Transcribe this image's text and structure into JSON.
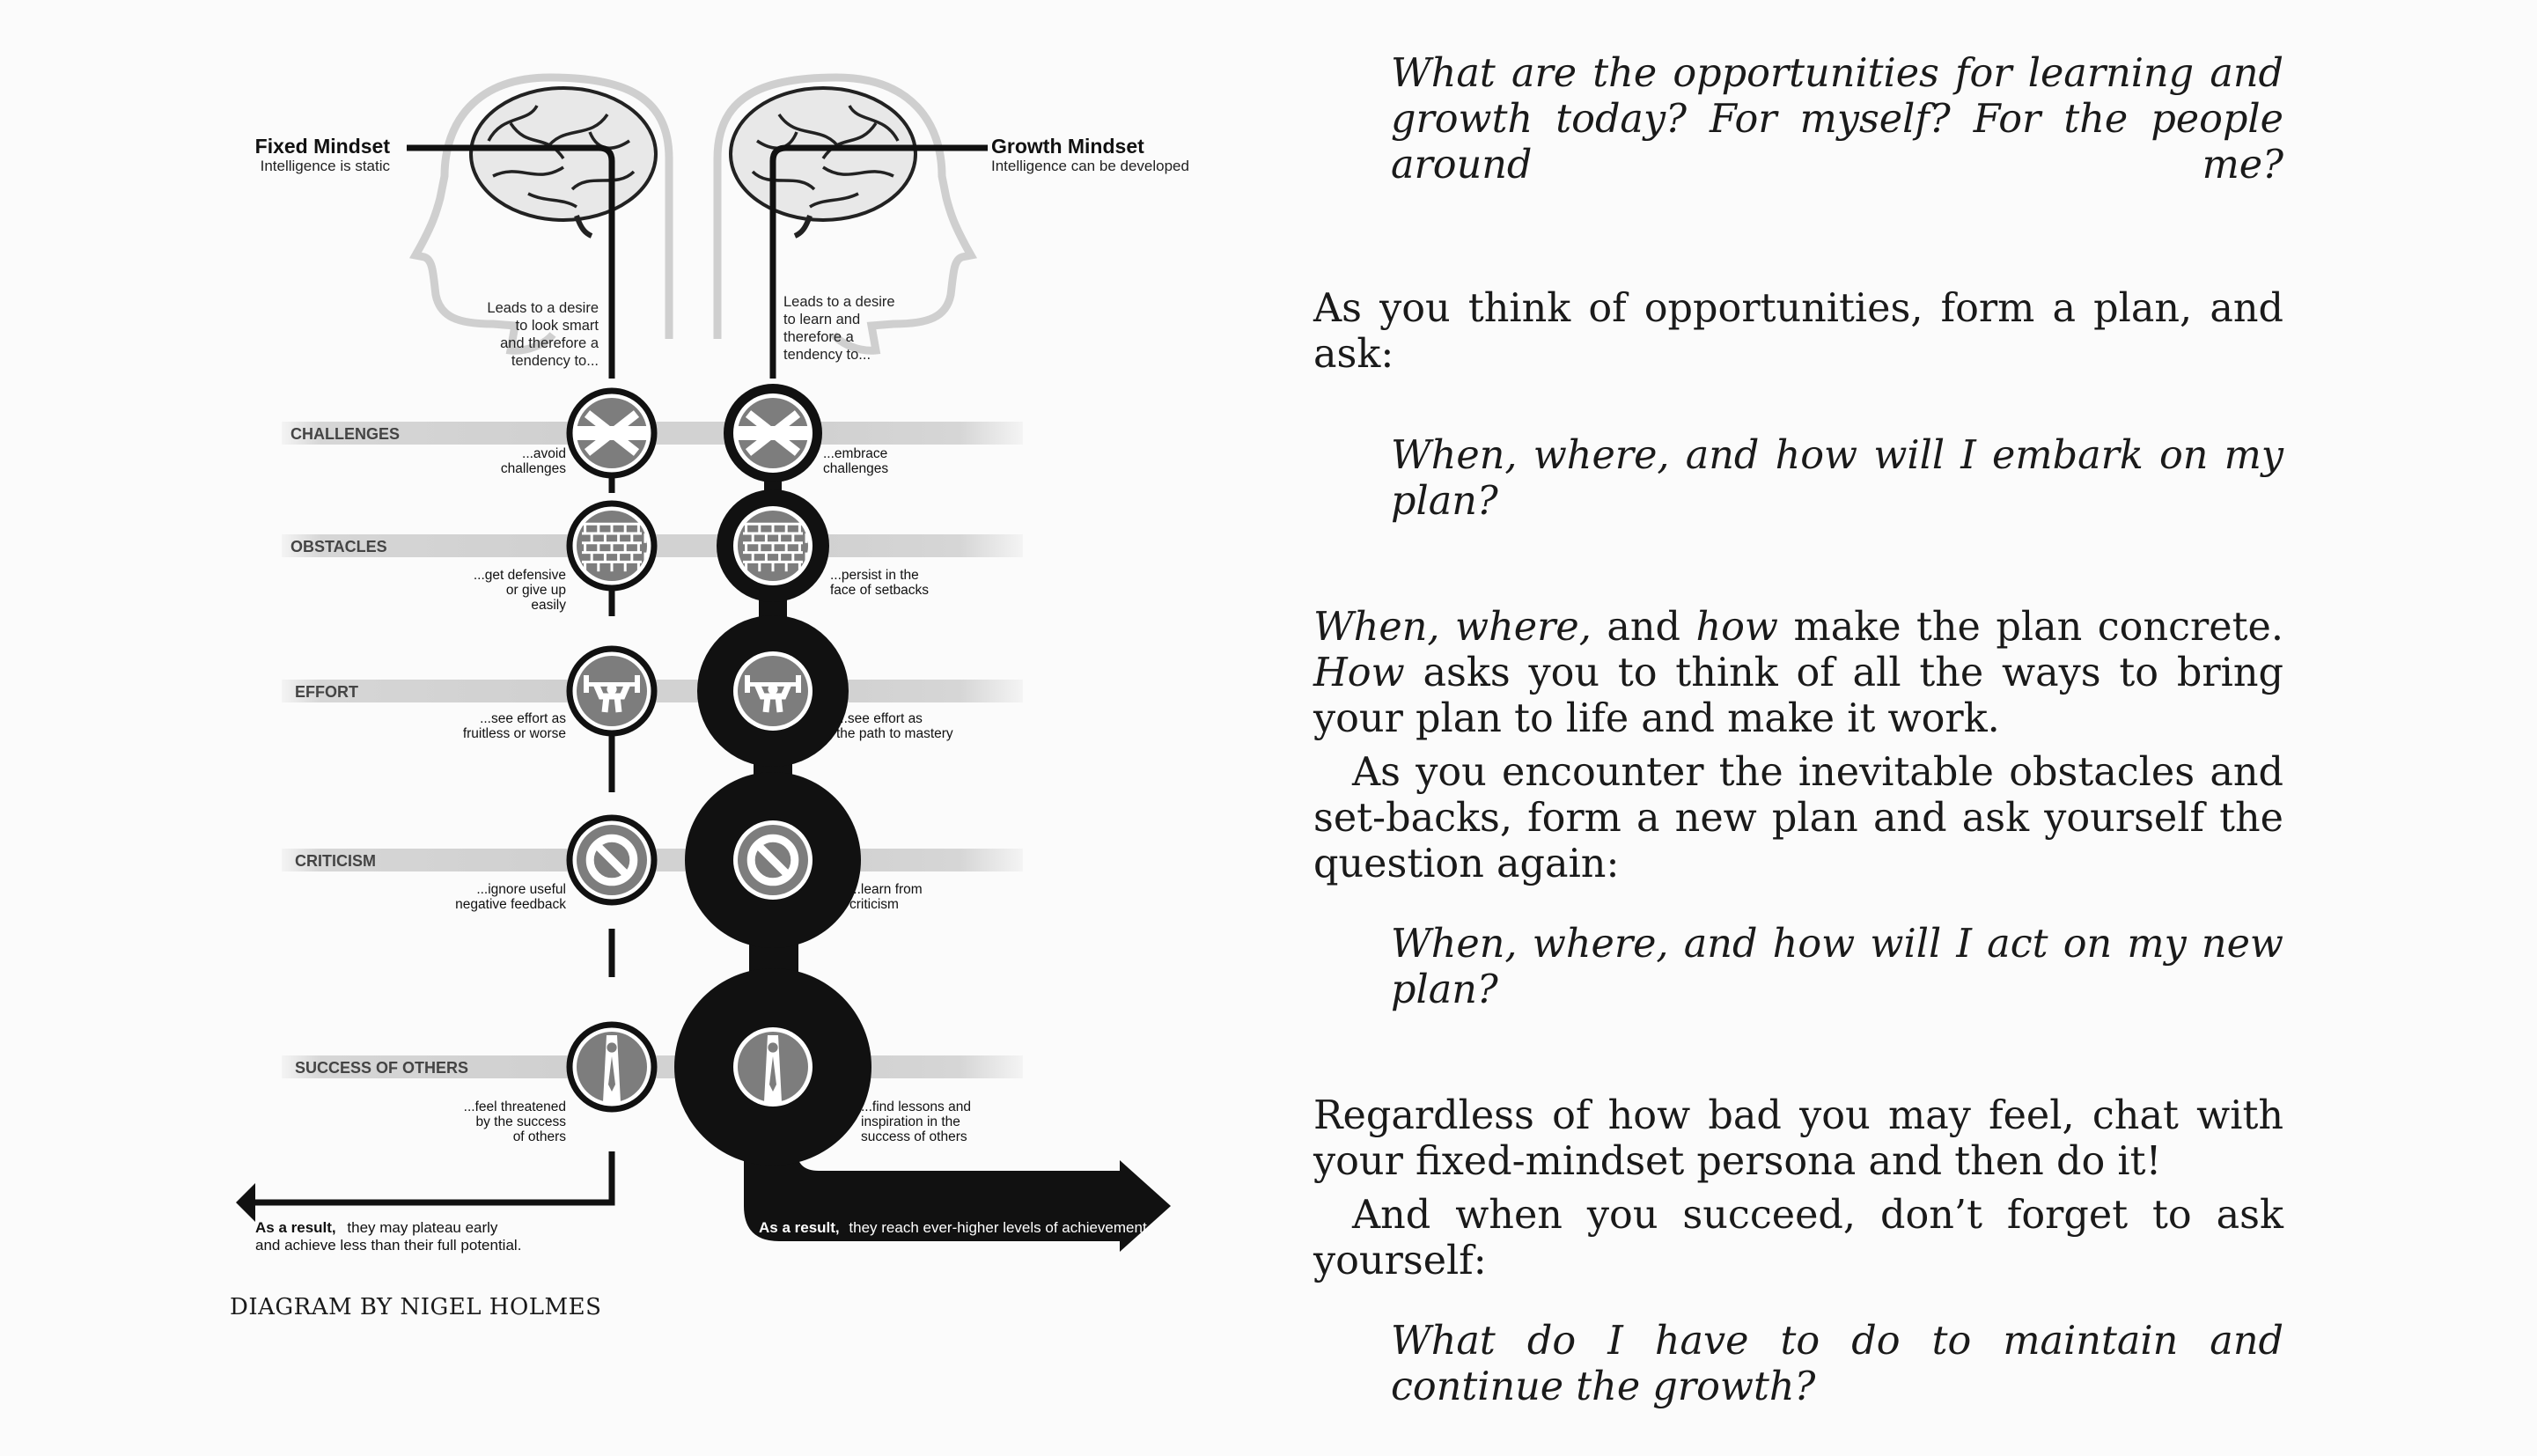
{
  "diagram": {
    "fixed": {
      "title": "Fixed Mindset",
      "subtitle": "Intelligence is static",
      "leads": [
        "Leads to a desire",
        "to look smart",
        "and therefore a",
        "tendency to..."
      ],
      "responses": [
        [
          "...avoid",
          "challenges"
        ],
        [
          "...get defensive",
          "or give up",
          "easily"
        ],
        [
          "...see effort as",
          "fruitless or worse"
        ],
        [
          "...ignore useful",
          "negative feedback"
        ],
        [
          "...feel threatened",
          "by the success",
          "of others"
        ]
      ],
      "result_bold": "As a result,",
      "result_lines": [
        "they may plateau early",
        "and achieve less than their full potential."
      ]
    },
    "growth": {
      "title": "Growth Mindset",
      "subtitle": "Intelligence can be developed",
      "leads": [
        "Leads to a desire",
        "to learn and",
        "therefore a",
        "tendency to..."
      ],
      "responses": [
        [
          "...embrace",
          "challenges"
        ],
        [
          "...persist in the",
          "face of setbacks"
        ],
        [
          "...see effort as",
          "the path to mastery"
        ],
        [
          "...learn from",
          "criticism"
        ],
        [
          "...find lessons and",
          "inspiration in the",
          "success of others"
        ]
      ],
      "result_bold": "As a result,",
      "result_text": "they reach ever-higher levels of achievement."
    },
    "categories": [
      "CHALLENGES",
      "OBSTACLES",
      "EFFORT",
      "CRITICISM",
      "SUCCESS OF OTHERS"
    ],
    "icons": [
      "challenge-icon",
      "brick-wall-icon",
      "weightlifter-icon",
      "no-sign-icon",
      "success-person-icon"
    ],
    "credit": "DIAGRAM BY NIGEL HOLMES"
  },
  "text": {
    "q1": "What are the opportunities for learning and growth today? For myself? For the people around me?",
    "p1": "As you think of opportunities, form a plan, and ask:",
    "q2": "When, where, and how will I embark on my plan?",
    "p2_i1": "When, where,",
    "p2_t1": " and ",
    "p2_i2": "how",
    "p2_t2": " make the plan concrete. ",
    "p2_i3": "How",
    "p2_t3": " asks you to think of all the ways to bring your plan to life and make it work.",
    "p3": "As you encounter the inevitable obstacles and set-backs, form a new plan and ask yourself the question again:",
    "q3": "When, where, and how will I act on my new plan?",
    "p4": "Regardless of how bad you may feel, chat with your fixed-mindset persona and then do it!",
    "p5": "And when you succeed, don’t forget to ask yourself:",
    "q4": "What do I have to do to maintain and continue the growth?"
  },
  "colors": {
    "gray": "#8a8a8a",
    "light_gray": "#d0d0d0",
    "black": "#111111"
  }
}
